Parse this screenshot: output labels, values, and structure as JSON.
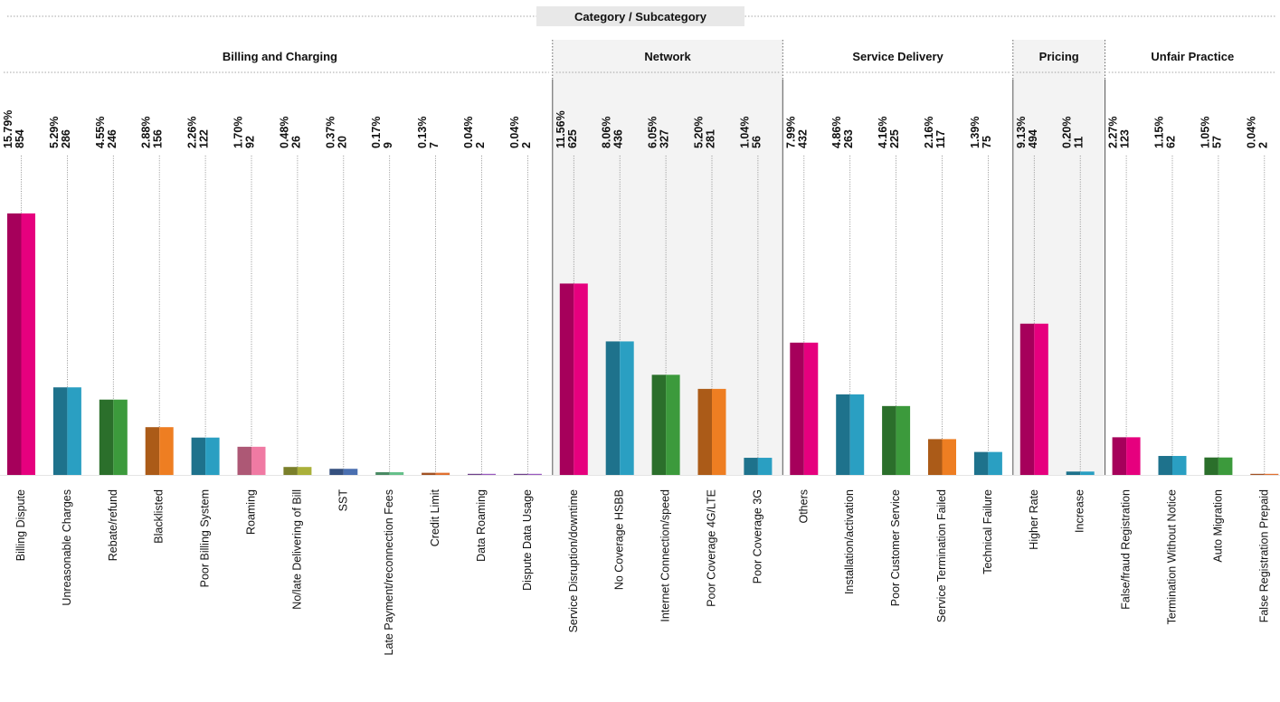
{
  "chart_data": {
    "type": "bar",
    "title": "Category / Subcategory",
    "ylim": [
      0,
      900
    ],
    "grid": false,
    "colors": {
      "magenta": "#e6007e",
      "teal": "#2a9fc2",
      "green": "#3c9a3c",
      "orange": "#ee7e22",
      "pink": "#f07aa3",
      "olive": "#aab03a",
      "blue": "#4a6fb0",
      "lightgreen": "#66c08a",
      "darkorange": "#e07030",
      "purple": "#9a5abf"
    },
    "groups": [
      {
        "name": "Billing and Charging",
        "shaded": false,
        "items": [
          {
            "label": "Billing Dispute",
            "count": 854,
            "pct": "15.79%",
            "color": "magenta"
          },
          {
            "label": "Unreasonable Charges",
            "count": 286,
            "pct": "5.29%",
            "color": "teal"
          },
          {
            "label": "Rebate/refund",
            "count": 246,
            "pct": "4.55%",
            "color": "green"
          },
          {
            "label": "Blacklisted",
            "count": 156,
            "pct": "2.88%",
            "color": "orange"
          },
          {
            "label": "Poor Billing System",
            "count": 122,
            "pct": "2.26%",
            "color": "teal"
          },
          {
            "label": "Roaming",
            "count": 92,
            "pct": "1.70%",
            "color": "pink"
          },
          {
            "label": "No/late Delivering of Bill",
            "count": 26,
            "pct": "0.48%",
            "color": "olive"
          },
          {
            "label": "SST",
            "count": 20,
            "pct": "0.37%",
            "color": "blue"
          },
          {
            "label": "Late Payment/reconnection Fees",
            "count": 9,
            "pct": "0.17%",
            "color": "lightgreen"
          },
          {
            "label": "Credit Limit",
            "count": 7,
            "pct": "0.13%",
            "color": "darkorange"
          },
          {
            "label": "Data Roaming",
            "count": 2,
            "pct": "0.04%",
            "color": "purple"
          },
          {
            "label": "Dispute Data Usage",
            "count": 2,
            "pct": "0.04%",
            "color": "purple"
          }
        ]
      },
      {
        "name": "Network",
        "shaded": true,
        "items": [
          {
            "label": "Service Disruption/downtime",
            "count": 625,
            "pct": "11.56%",
            "color": "magenta"
          },
          {
            "label": "No Coverage HSBB",
            "count": 436,
            "pct": "8.06%",
            "color": "teal"
          },
          {
            "label": "Internet Connection/speed",
            "count": 327,
            "pct": "6.05%",
            "color": "green"
          },
          {
            "label": "Poor Coverage 4G/LTE",
            "count": 281,
            "pct": "5.20%",
            "color": "orange"
          },
          {
            "label": "Poor Coverage 3G",
            "count": 56,
            "pct": "1.04%",
            "color": "teal"
          }
        ]
      },
      {
        "name": "Service Delivery",
        "shaded": false,
        "items": [
          {
            "label": "Others",
            "count": 432,
            "pct": "7.99%",
            "color": "magenta"
          },
          {
            "label": "Installation/activation",
            "count": 263,
            "pct": "4.86%",
            "color": "teal"
          },
          {
            "label": "Poor Customer Service",
            "count": 225,
            "pct": "4.16%",
            "color": "green"
          },
          {
            "label": "Service Termination Failed",
            "count": 117,
            "pct": "2.16%",
            "color": "orange"
          },
          {
            "label": "Technical Failure",
            "count": 75,
            "pct": "1.39%",
            "color": "teal"
          }
        ]
      },
      {
        "name": "Pricing",
        "shaded": true,
        "items": [
          {
            "label": "Higher Rate",
            "count": 494,
            "pct": "9.13%",
            "color": "magenta"
          },
          {
            "label": "Increase",
            "count": 11,
            "pct": "0.20%",
            "color": "teal"
          }
        ]
      },
      {
        "name": "Unfair Practice",
        "shaded": false,
        "items": [
          {
            "label": "False/fraud Registration",
            "count": 123,
            "pct": "2.27%",
            "color": "magenta"
          },
          {
            "label": "Termination Without Notice",
            "count": 62,
            "pct": "1.15%",
            "color": "teal"
          },
          {
            "label": "Auto Migration",
            "count": 57,
            "pct": "1.05%",
            "color": "green"
          },
          {
            "label": "False Registration Prepaid",
            "count": 2,
            "pct": "0.04%",
            "color": "darkorange"
          }
        ]
      }
    ]
  }
}
